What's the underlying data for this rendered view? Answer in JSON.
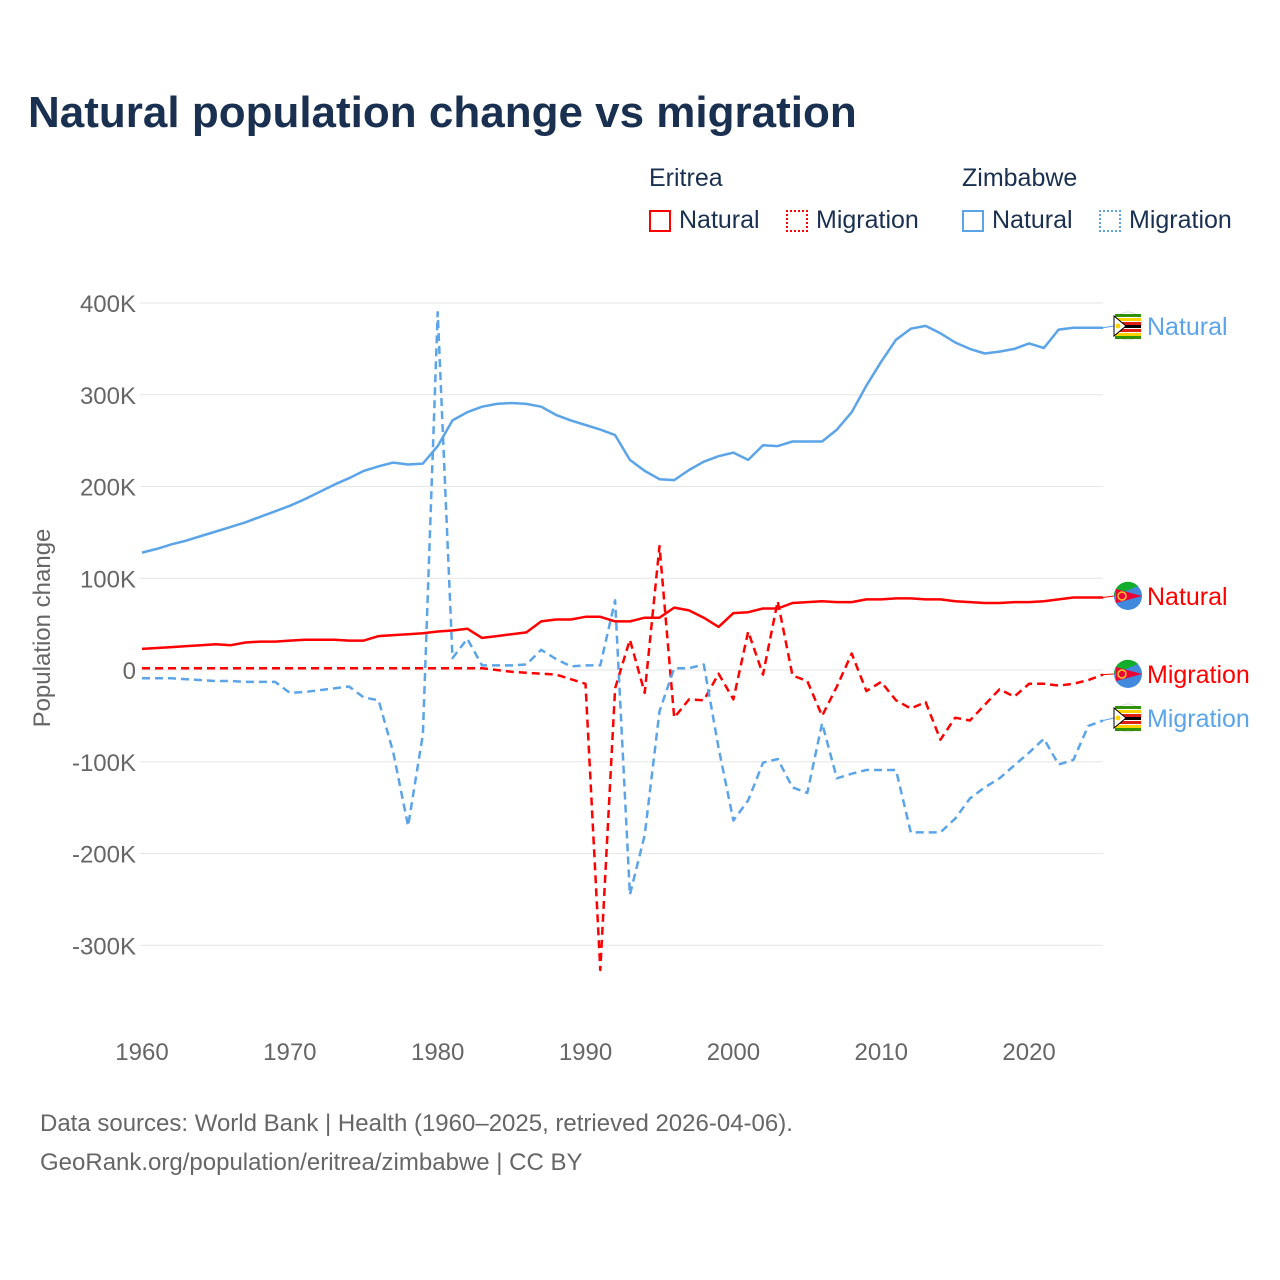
{
  "colors": {
    "eritrea": "#ff0000",
    "zimbabwe": "#5ba4e8",
    "grid": "#e6e6e6",
    "axis_text": "#666666"
  },
  "legend": {
    "groups": [
      {
        "title": "Eritrea",
        "items": [
          "Natural",
          "Migration"
        ]
      },
      {
        "title": "Zimbabwe",
        "items": [
          "Natural",
          "Migration"
        ]
      }
    ]
  },
  "footer": {
    "line1": "Data sources: World Bank | Health (1960–2025, retrieved 2026-04-06).",
    "line2": "GeoRank.org/population/eritrea/zimbabwe | CC BY"
  },
  "chart_data": {
    "type": "line",
    "title": "Natural population change vs migration",
    "xlabel": "",
    "ylabel": "Population change",
    "xlim": [
      1960,
      2025
    ],
    "ylim": [
      -350000,
      420000
    ],
    "xticks": [
      1960,
      1970,
      1980,
      1990,
      2000,
      2010,
      2020
    ],
    "yticks": [
      -300000,
      -200000,
      -100000,
      0,
      100000,
      200000,
      300000,
      400000
    ],
    "ytick_labels": [
      "-300K",
      "-200K",
      "-100K",
      "0",
      "100K",
      "200K",
      "300K",
      "400K"
    ],
    "grid": true,
    "legend_position": "top-right",
    "x_start": 1960,
    "series": [
      {
        "name": "Zimbabwe Natural",
        "country": "zimbabwe",
        "style": "solid",
        "end_label": "Natural",
        "units": "thousands",
        "values": [
          128,
          132,
          137,
          141,
          146,
          151,
          156,
          161,
          167,
          173,
          179,
          186,
          194,
          202,
          209,
          217,
          222,
          226,
          224,
          225,
          244,
          272,
          281,
          287,
          290,
          291,
          290,
          287,
          278,
          272,
          267,
          262,
          256,
          229,
          217,
          208,
          207,
          218,
          227,
          233,
          237,
          229,
          245,
          244,
          249,
          249,
          249,
          262,
          281,
          310,
          336,
          360,
          372,
          375,
          367,
          357,
          350,
          345,
          347,
          350,
          356,
          351,
          371,
          373,
          373,
          373
        ]
      },
      {
        "name": "Eritrea Natural",
        "country": "eritrea",
        "style": "solid",
        "end_label": "Natural",
        "units": "thousands",
        "values": [
          23,
          24,
          25,
          26,
          27,
          28,
          27,
          30,
          31,
          31,
          32,
          33,
          33,
          33,
          32,
          32,
          37,
          38,
          39,
          40,
          42,
          43,
          45,
          35,
          37,
          39,
          41,
          53,
          55,
          55,
          58,
          58,
          53,
          53,
          57,
          57,
          68,
          65,
          57,
          47,
          62,
          63,
          67,
          67,
          73,
          74,
          75,
          74,
          74,
          77,
          77,
          78,
          78,
          77,
          77,
          75,
          74,
          73,
          73,
          74,
          74,
          75,
          77,
          79,
          79,
          79
        ]
      },
      {
        "name": "Eritrea Migration",
        "country": "eritrea",
        "style": "dashed",
        "end_label": "Migration",
        "units": "thousands",
        "values": [
          2,
          2,
          2,
          2,
          2,
          2,
          2,
          2,
          2,
          2,
          2,
          2,
          2,
          2,
          2,
          2,
          2,
          2,
          2,
          2,
          2,
          2,
          2,
          2,
          0,
          -2,
          -3,
          -4,
          -5,
          -10,
          -15,
          -327,
          -20,
          33,
          -25,
          135,
          -52,
          -32,
          -33,
          -4,
          -32,
          42,
          -5,
          75,
          -6,
          -12,
          -50,
          -18,
          18,
          -23,
          -13,
          -33,
          -42,
          -35,
          -76,
          -52,
          -55,
          -38,
          -21,
          -29,
          -15,
          -15,
          -17,
          -15,
          -11,
          -5
        ]
      },
      {
        "name": "Zimbabwe Migration",
        "country": "zimbabwe",
        "style": "dashed",
        "end_label": "Migration",
        "units": "thousands",
        "values": [
          -9,
          -9,
          -9,
          -10,
          -11,
          -12,
          -12,
          -13,
          -13,
          -13,
          -25,
          -24,
          -22,
          -20,
          -18,
          -30,
          -33,
          -90,
          -170,
          -70,
          390,
          13,
          34,
          5,
          5,
          5,
          6,
          22,
          12,
          4,
          5,
          5,
          76,
          -245,
          -180,
          -45,
          2,
          2,
          6,
          -85,
          -164,
          -142,
          -101,
          -97,
          -128,
          -134,
          -58,
          -118,
          -113,
          -109,
          -109,
          -109,
          -177,
          -177,
          -177,
          -162,
          -140,
          -128,
          -118,
          -104,
          -90,
          -75,
          -103,
          -98,
          -61,
          -55
        ]
      }
    ]
  }
}
